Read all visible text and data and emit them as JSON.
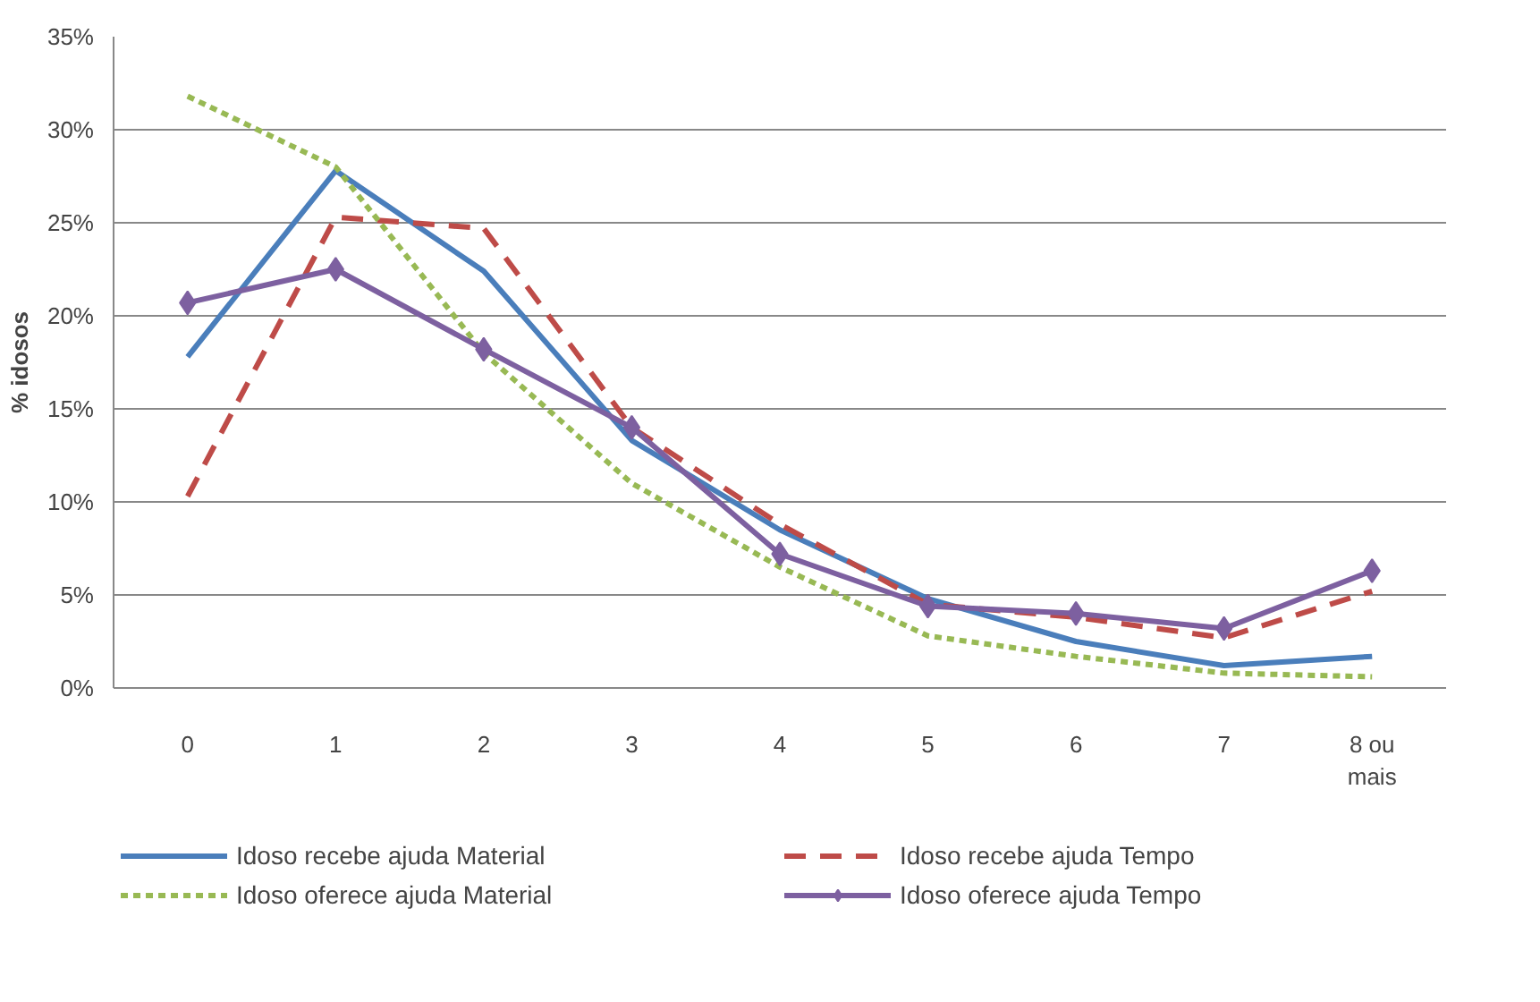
{
  "chart_data": {
    "type": "line",
    "ylabel": "% idosos",
    "categories": [
      "0",
      "1",
      "2",
      "3",
      "4",
      "5",
      "6",
      "7",
      "8 ou\nmais"
    ],
    "ylim": [
      0,
      35
    ],
    "yticks": [
      {
        "value": 0,
        "label": "0%"
      },
      {
        "value": 5,
        "label": "5%"
      },
      {
        "value": 10,
        "label": "10%"
      },
      {
        "value": 15,
        "label": "15%"
      },
      {
        "value": 20,
        "label": "20%"
      },
      {
        "value": 25,
        "label": "25%"
      },
      {
        "value": 30,
        "label": "30%"
      },
      {
        "value": 35,
        "label": "35%"
      }
    ],
    "grid": "y",
    "legend": "bottom",
    "series": [
      {
        "name": "Idoso recebe ajuda Material",
        "color": "#4a7ebb",
        "line_style": "solid",
        "marker": "none",
        "values": [
          17.8,
          27.8,
          22.4,
          13.3,
          8.5,
          4.8,
          2.5,
          1.2,
          1.7
        ]
      },
      {
        "name": "Idoso recebe ajuda Tempo",
        "color": "#be4b48",
        "line_style": "dashed",
        "marker": "none",
        "values": [
          10.3,
          25.3,
          24.7,
          14.0,
          8.8,
          4.5,
          3.8,
          2.7,
          5.2
        ]
      },
      {
        "name": "Idoso oferece ajuda Material",
        "color": "#98b954",
        "line_style": "dotted",
        "marker": "none",
        "values": [
          31.8,
          28.0,
          18.0,
          11.0,
          6.5,
          2.8,
          1.7,
          0.8,
          0.6
        ]
      },
      {
        "name": "Idoso oferece ajuda Tempo",
        "color": "#7d60a0",
        "line_style": "solid",
        "marker": "diamond",
        "values": [
          20.7,
          22.5,
          18.2,
          14.0,
          7.2,
          4.4,
          4.0,
          3.2,
          6.3
        ]
      }
    ]
  }
}
